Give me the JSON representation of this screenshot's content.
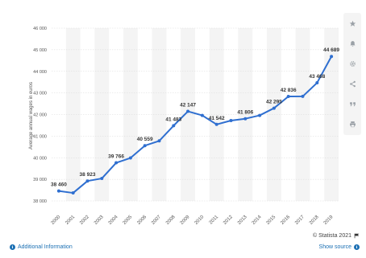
{
  "chart_data": {
    "type": "line",
    "ylabel": "Average annual wages in euros",
    "xlabel": "",
    "ylim": [
      38000,
      46000
    ],
    "yticks": [
      38000,
      39000,
      40000,
      41000,
      42000,
      43000,
      44000,
      45000,
      46000
    ],
    "ytick_labels": [
      "38 000",
      "39 000",
      "40 000",
      "41 000",
      "42 000",
      "43 000",
      "44 000",
      "45 000",
      "46 000"
    ],
    "grid": true,
    "x": [
      "2000",
      "2001",
      "2002",
      "2003",
      "2004",
      "2005",
      "2006",
      "2007",
      "2008",
      "2009",
      "2010",
      "2011",
      "2012",
      "2013",
      "2014",
      "2015",
      "2016",
      "2017",
      "2018",
      "2019"
    ],
    "series": [
      {
        "values": [
          38460,
          38370,
          38923,
          39040,
          39766,
          39990,
          40559,
          40780,
          41483,
          42147,
          41960,
          41542,
          41720,
          41806,
          41960,
          42295,
          42836,
          42840,
          43468,
          44689
        ],
        "color": "#2f6fd0"
      }
    ],
    "data_labels": [
      {
        "index": 0,
        "text": "38 460"
      },
      {
        "index": 2,
        "text": "38 923"
      },
      {
        "index": 4,
        "text": "39 766"
      },
      {
        "index": 6,
        "text": "40 559"
      },
      {
        "index": 8,
        "text": "41 483"
      },
      {
        "index": 9,
        "text": "42 147"
      },
      {
        "index": 11,
        "text": "41 542"
      },
      {
        "index": 13,
        "text": "41 806"
      },
      {
        "index": 15,
        "text": "42 295"
      },
      {
        "index": 16,
        "text": "42 836"
      },
      {
        "index": 18,
        "text": "43 468"
      },
      {
        "index": 19,
        "text": "44 689"
      }
    ]
  },
  "sidebar": {
    "buttons": [
      {
        "name": "star-icon"
      },
      {
        "name": "bell-icon"
      },
      {
        "name": "gear-icon"
      },
      {
        "name": "share-icon"
      },
      {
        "name": "quote-icon"
      },
      {
        "name": "print-icon"
      }
    ]
  },
  "footer": {
    "additional_info": "Additional Information",
    "copyright": "© Statista 2021",
    "show_source": "Show source"
  },
  "colors": {
    "line": "#2f6fd0",
    "link": "#1a6fb3",
    "band": "#f4f4f4"
  }
}
